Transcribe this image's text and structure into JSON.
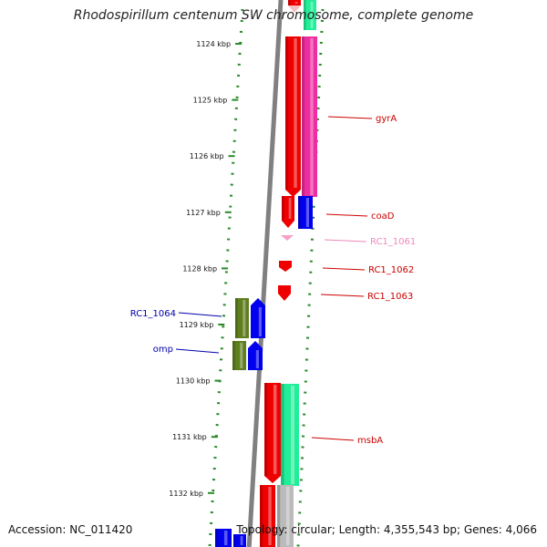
{
  "header": {
    "title": "Rhodospirillum centenum SW chromosome, complete genome"
  },
  "footer": {
    "accession": "Accession: NC_011420",
    "topology": "Topology: circular; Length: 4,355,543 bp; Genes: 4,066"
  },
  "colors": {
    "backbone": "#808080",
    "ruler": "#2a8a2a",
    "forward_red": "#ee0000",
    "reverse_magenta": "#ee2da0",
    "blue": "#0000ee",
    "olive": "#5f7f1f",
    "teal": "#22ee99",
    "gray": "#bbbbbb",
    "pink": "#f4a0c8",
    "label_red": "#cc0000",
    "label_blue": "#0000aa",
    "label_pink": "#ee88bb"
  },
  "ruler": {
    "ticks": [
      "1124 kbp",
      "1125 kbp",
      "1126 kbp",
      "1127 kbp",
      "1128 kbp",
      "1129 kbp",
      "1130 kbp",
      "1131 kbp",
      "1132 kbp"
    ]
  },
  "genes": [
    {
      "label": "gyrA",
      "color": "label_red"
    },
    {
      "label": "coaD",
      "color": "label_red"
    },
    {
      "label": "RC1_1061",
      "color": "label_pink"
    },
    {
      "label": "RC1_1062",
      "color": "label_red"
    },
    {
      "label": "RC1_1063",
      "color": "label_red"
    },
    {
      "label": "RC1_1064",
      "color": "label_blue"
    },
    {
      "label": "omp",
      "color": "label_blue"
    },
    {
      "label": "msbA",
      "color": "label_red"
    }
  ]
}
